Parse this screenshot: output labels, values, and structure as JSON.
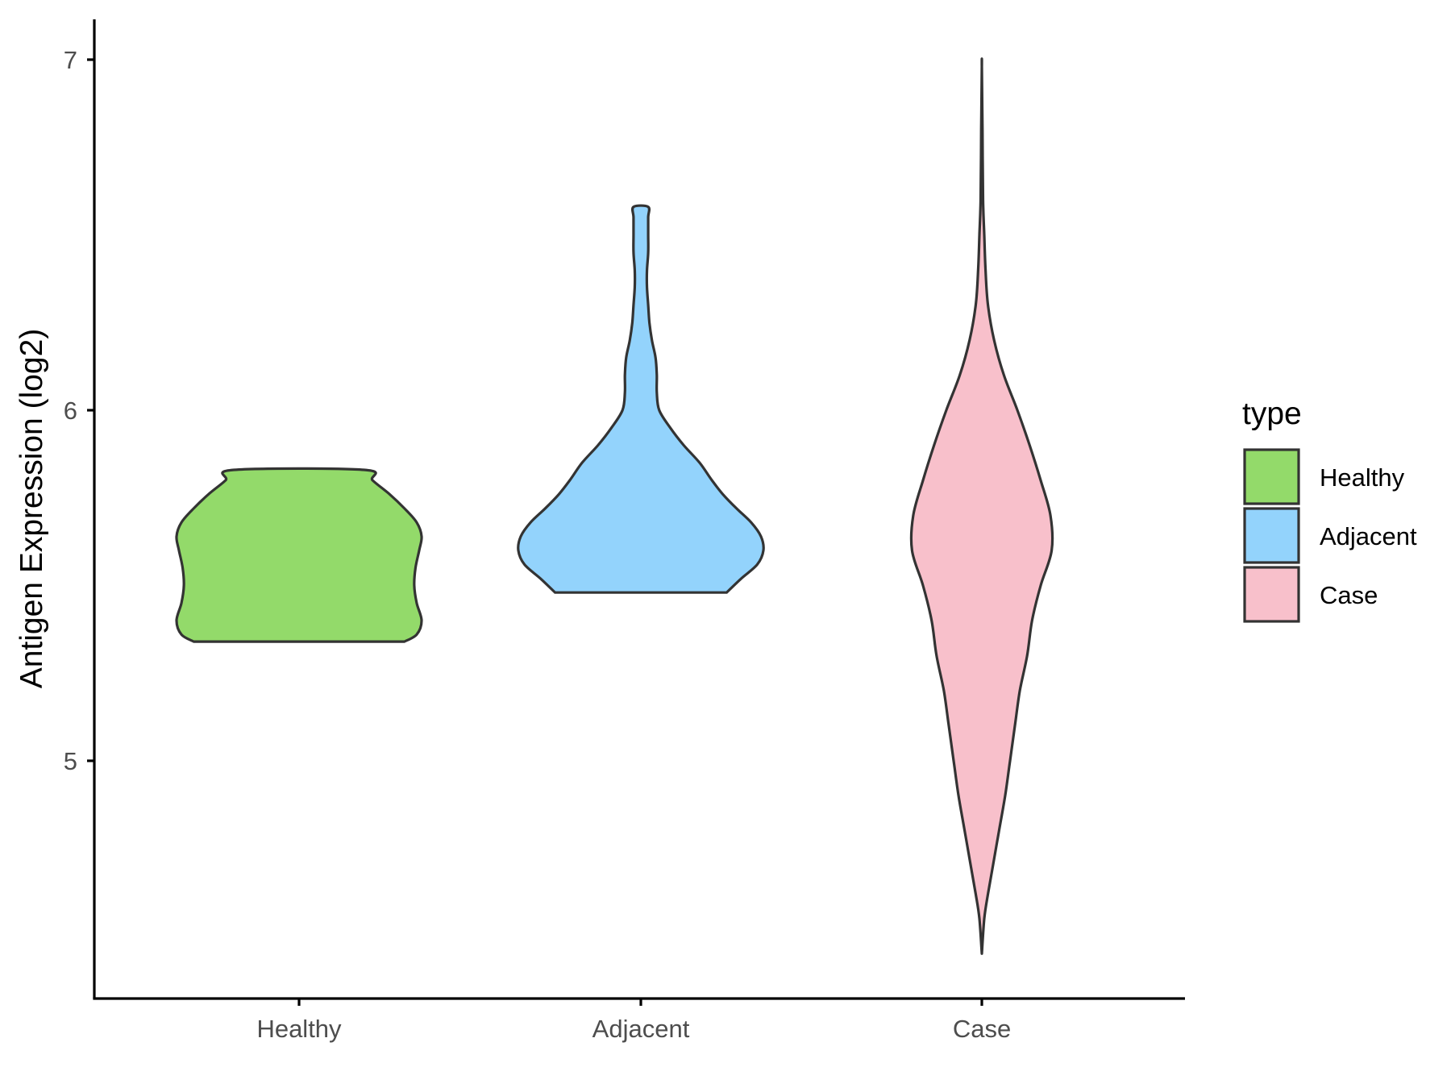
{
  "chart_data": {
    "type": "violin",
    "title": "",
    "xlabel": "",
    "ylabel": "Antigen Expression (log2)",
    "ylim": [
      4.33,
      7.12
    ],
    "yticks": [
      "5",
      "6",
      "7"
    ],
    "grid": false,
    "categories": [
      "Healthy",
      "Adjacent",
      "Case"
    ],
    "legend": {
      "title": "type",
      "position": "right",
      "entries": [
        "Healthy",
        "Adjacent",
        "Case"
      ]
    },
    "colors": {
      "Healthy": "#93DA6A",
      "Adjacent": "#93D3FC",
      "Case": "#F8C0CB",
      "outline": "#333333",
      "axis": "#000000"
    },
    "violins": [
      {
        "name": "Healthy",
        "min": 5.34,
        "max": 5.83,
        "profile": [
          [
            5.34,
            0.86
          ],
          [
            5.36,
            0.96
          ],
          [
            5.4,
            1.0
          ],
          [
            5.45,
            0.96
          ],
          [
            5.5,
            0.94
          ],
          [
            5.55,
            0.95
          ],
          [
            5.6,
            0.98
          ],
          [
            5.64,
            1.0
          ],
          [
            5.68,
            0.96
          ],
          [
            5.72,
            0.86
          ],
          [
            5.76,
            0.74
          ],
          [
            5.8,
            0.6
          ],
          [
            5.83,
            0.53
          ]
        ]
      },
      {
        "name": "Adjacent",
        "min": 5.48,
        "max": 6.58,
        "profile": [
          [
            5.48,
            0.7
          ],
          [
            5.52,
            0.82
          ],
          [
            5.56,
            0.95
          ],
          [
            5.6,
            1.0
          ],
          [
            5.64,
            0.98
          ],
          [
            5.68,
            0.9
          ],
          [
            5.72,
            0.78
          ],
          [
            5.76,
            0.67
          ],
          [
            5.8,
            0.58
          ],
          [
            5.85,
            0.48
          ],
          [
            5.9,
            0.35
          ],
          [
            5.95,
            0.24
          ],
          [
            6.0,
            0.15
          ],
          [
            6.05,
            0.13
          ],
          [
            6.1,
            0.13
          ],
          [
            6.15,
            0.12
          ],
          [
            6.2,
            0.09
          ],
          [
            6.25,
            0.07
          ],
          [
            6.3,
            0.06
          ],
          [
            6.35,
            0.05
          ],
          [
            6.4,
            0.05
          ],
          [
            6.45,
            0.06
          ],
          [
            6.5,
            0.06
          ],
          [
            6.55,
            0.06
          ],
          [
            6.58,
            0.06
          ]
        ]
      },
      {
        "name": "Case",
        "min": 4.45,
        "max": 6.98,
        "profile": [
          [
            4.45,
            0.0
          ],
          [
            4.55,
            0.02
          ],
          [
            4.62,
            0.05
          ],
          [
            4.7,
            0.09
          ],
          [
            4.8,
            0.14
          ],
          [
            4.9,
            0.19
          ],
          [
            5.0,
            0.23
          ],
          [
            5.1,
            0.27
          ],
          [
            5.2,
            0.31
          ],
          [
            5.3,
            0.37
          ],
          [
            5.4,
            0.41
          ],
          [
            5.5,
            0.48
          ],
          [
            5.6,
            0.57
          ],
          [
            5.7,
            0.56
          ],
          [
            5.8,
            0.48
          ],
          [
            5.9,
            0.39
          ],
          [
            6.0,
            0.29
          ],
          [
            6.1,
            0.18
          ],
          [
            6.2,
            0.1
          ],
          [
            6.3,
            0.05
          ],
          [
            6.4,
            0.03
          ],
          [
            6.5,
            0.02
          ],
          [
            6.6,
            0.01
          ],
          [
            6.8,
            0.005
          ],
          [
            6.98,
            0.0
          ]
        ]
      }
    ]
  }
}
